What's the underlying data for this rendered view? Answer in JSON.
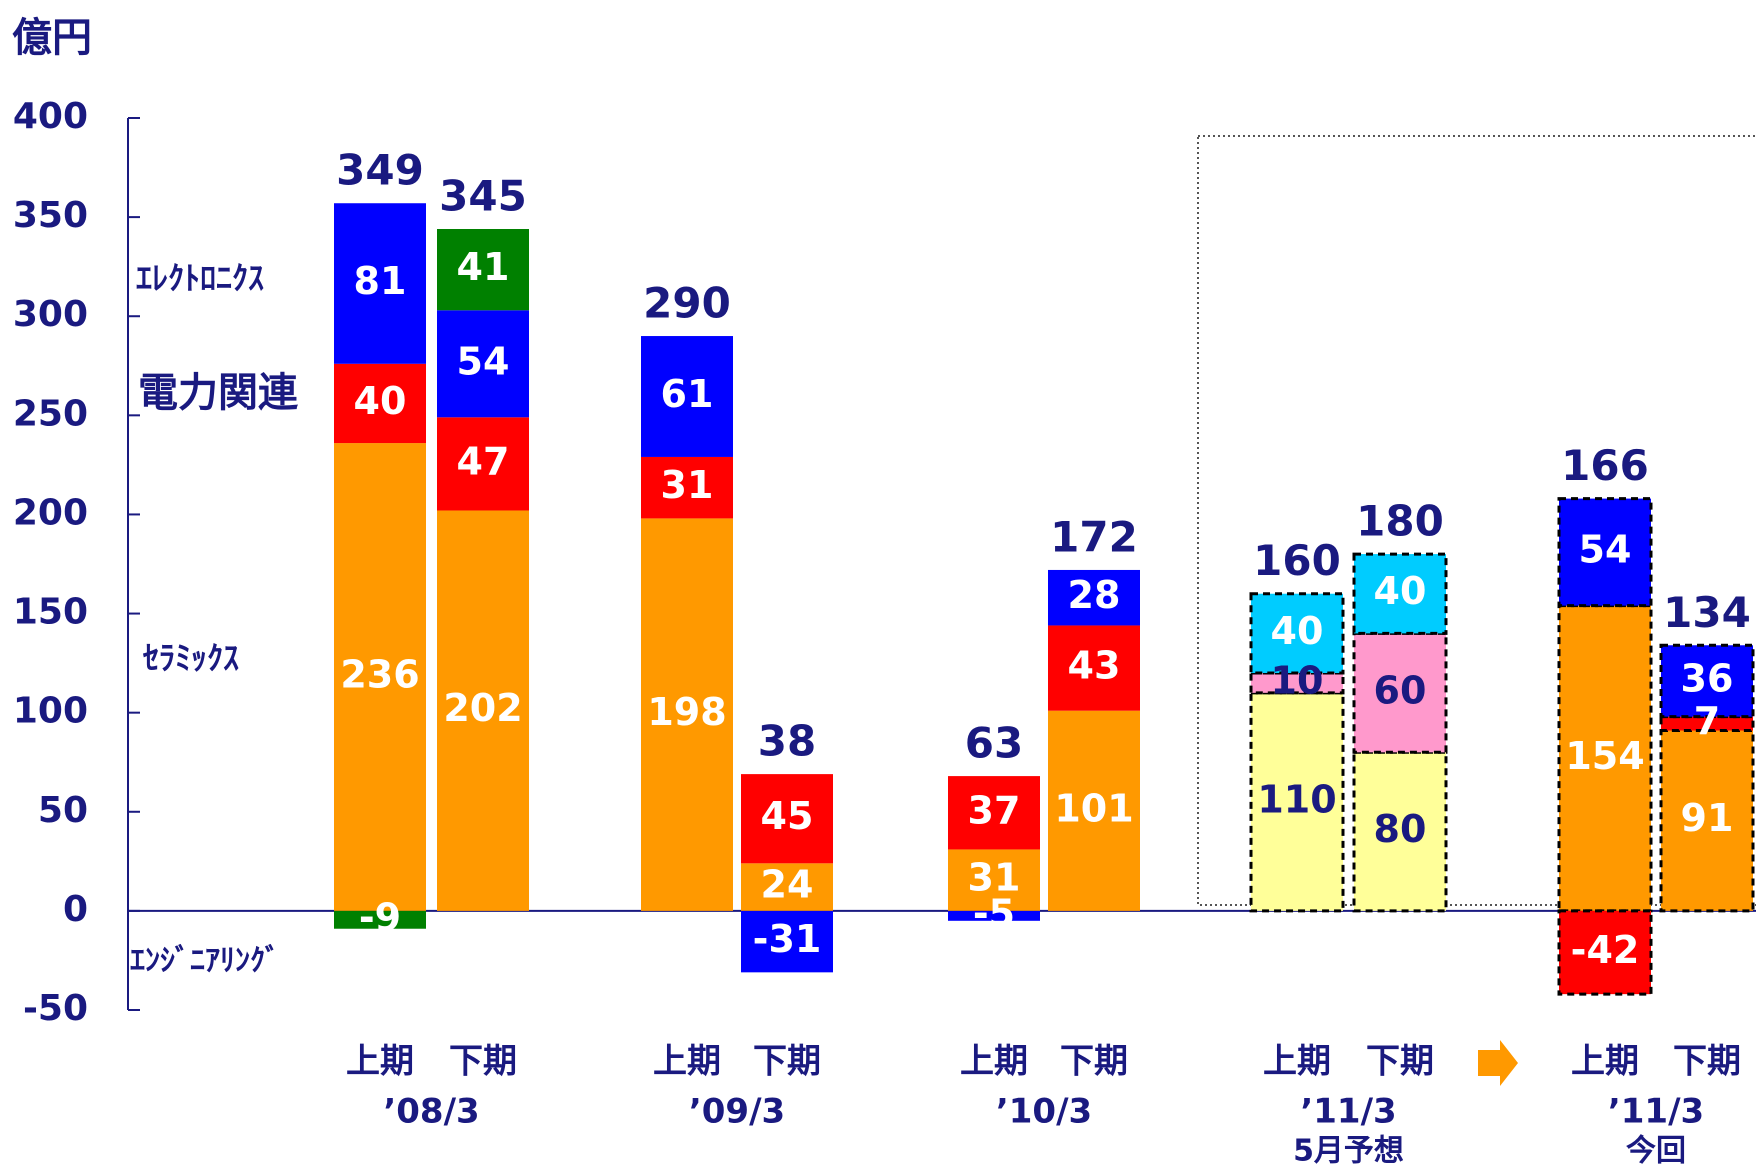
{
  "chart_data": {
    "type": "stacked_bar",
    "ylabel": "億円",
    "ylim": [
      -50,
      400
    ],
    "yticks": [
      -50,
      0,
      50,
      100,
      150,
      200,
      250,
      300,
      350,
      400
    ],
    "categories": [
      "上期",
      "下期",
      "上期",
      "下期",
      "上期",
      "下期",
      "上期",
      "下期",
      "上期",
      "下期"
    ],
    "groups": [
      {
        "name": "’08/3"
      },
      {
        "name": "’09/3"
      },
      {
        "name": "’10/3"
      },
      {
        "name": "’11/3",
        "sub": "5月予想"
      },
      {
        "name": "’11/3",
        "sub": "今回"
      }
    ],
    "series": [
      {
        "name": "ｾﾗﾐｯｸｽ",
        "values": [
          236,
          202,
          198,
          24,
          31,
          101,
          110,
          80,
          154,
          91
        ],
        "colors": [
          "#FF9900",
          "#FF9900",
          "#FF9900",
          "#FF9900",
          "#FF9900",
          "#FF9900",
          "#FFFF99",
          "#FFFF99",
          "#FF9900",
          "#FF9900"
        ]
      },
      {
        "name": "電力関連",
        "values": [
          40,
          47,
          31,
          45,
          37,
          43,
          10,
          60,
          -42,
          7
        ],
        "colors": [
          "#FF0000",
          "#FF0000",
          "#FF0000",
          "#FF0000",
          "#FF0000",
          "#FF0000",
          "#FF99CC",
          "#FF99CC",
          "#FF0000",
          "#FF0000"
        ]
      },
      {
        "name": "ｴﾚｸﾄﾛﾆｸｽ",
        "values": [
          81,
          54,
          61,
          -31,
          -5,
          28,
          40,
          40,
          54,
          36
        ],
        "colors": [
          "#0000FF",
          "#0000FF",
          "#0000FF",
          "#0000FF",
          "#0000FF",
          "#0000FF",
          "#00CCFF",
          "#00CCFF",
          "#0000FF",
          "#0000FF"
        ]
      },
      {
        "name": "ｴﾝｼﾞﾆｱﾘﾝｸﾞ",
        "values": [
          -9,
          41,
          null,
          null,
          null,
          null,
          null,
          null,
          null,
          null
        ],
        "colors": [
          "#008000",
          "#008000",
          null,
          null,
          null,
          null,
          null,
          null,
          null,
          null
        ]
      }
    ],
    "totals": [
      349,
      345,
      290,
      38,
      63,
      172,
      160,
      180,
      166,
      134
    ],
    "dashed": [
      false,
      false,
      false,
      false,
      false,
      false,
      true,
      true,
      true,
      true
    ]
  }
}
